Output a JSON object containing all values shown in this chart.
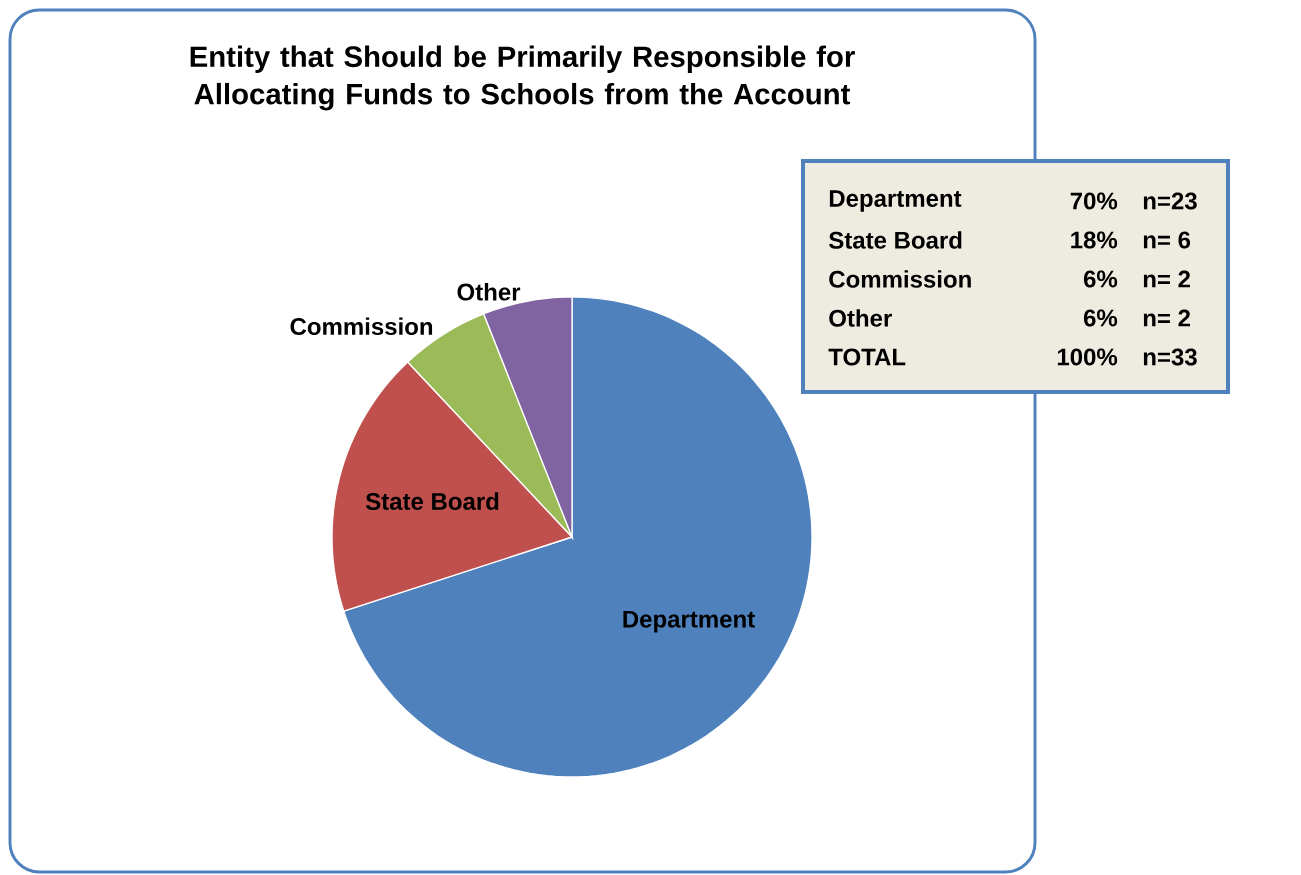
{
  "chart_data": {
    "type": "pie",
    "title": "Entity that Should be Primarily Responsible for Allocating Funds to Schools from the Account",
    "categories": [
      "Department",
      "State Board",
      "Commission",
      "Other"
    ],
    "values": [
      70,
      18,
      6,
      6
    ],
    "colors": [
      "#4f81bd",
      "#c0504d",
      "#9bbb59",
      "#8064a2"
    ],
    "annotations": [
      "Department",
      "70%",
      "n=23",
      "State Board",
      "18%",
      "n= 6",
      "Commission",
      "6%",
      "n= 2",
      "Other",
      "6%",
      "n= 2",
      "TOTAL",
      "100%",
      "n=33"
    ]
  }
}
